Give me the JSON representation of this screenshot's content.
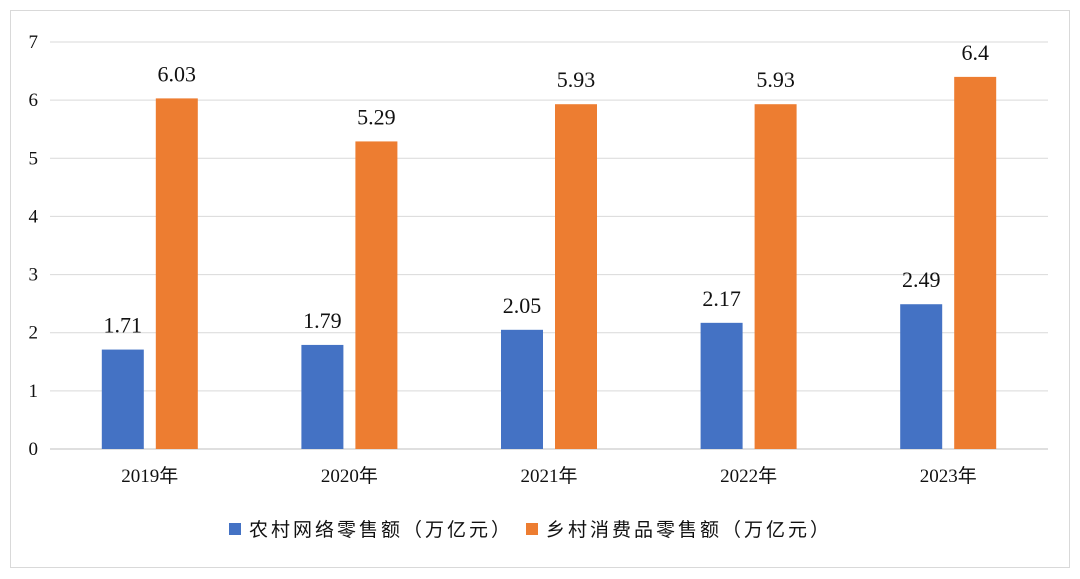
{
  "chart_data": {
    "type": "bar",
    "categories": [
      "2019年",
      "2020年",
      "2021年",
      "2022年",
      "2023年"
    ],
    "series": [
      {
        "name": "农村网络零售额（万亿元）",
        "color": "#4472c4",
        "values": [
          1.71,
          1.79,
          2.05,
          2.17,
          2.49
        ]
      },
      {
        "name": "乡村消费品零售额（万亿元）",
        "color": "#ed7d31",
        "values": [
          6.03,
          5.29,
          5.93,
          5.93,
          6.4
        ]
      }
    ],
    "title": "",
    "xlabel": "",
    "ylabel": "",
    "ylim": [
      0,
      7
    ],
    "yticks": [
      0,
      1,
      2,
      3,
      4,
      5,
      6,
      7
    ],
    "grid": true,
    "legend_position": "bottom"
  }
}
